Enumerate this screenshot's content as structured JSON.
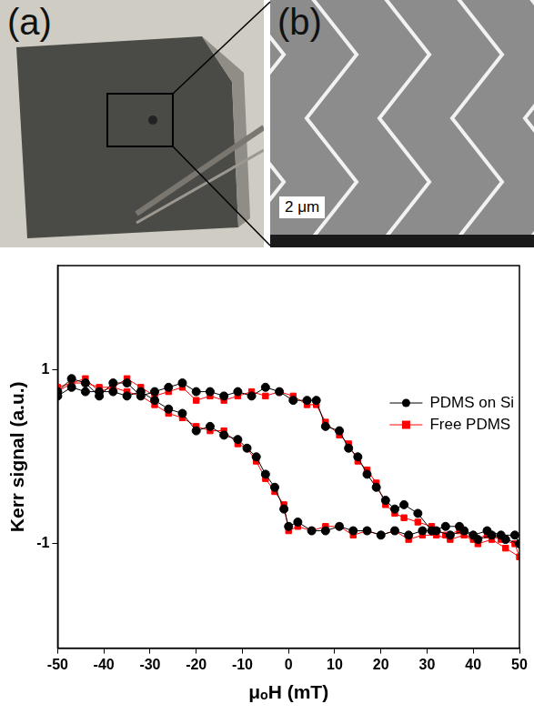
{
  "panels": [
    {
      "label": "(a)"
    },
    {
      "label": "(b)",
      "scale_bar": "2 μm"
    }
  ],
  "chart_data": {
    "type": "line",
    "x_label": "μₒH (mT)",
    "y_label": "Kerr signal (a.u.)",
    "xlim": [
      -50,
      50
    ],
    "xticks": [
      -50,
      -40,
      -30,
      -20,
      -10,
      0,
      10,
      20,
      30,
      40,
      50
    ],
    "ylim": [
      -2.2,
      2.2
    ],
    "yticks": [
      -1,
      1
    ],
    "grid": false,
    "legend": "right",
    "series": [
      {
        "name": "PDMS on Si",
        "color": "#000000",
        "marker": "circle",
        "line_style": "solid",
        "x": [
          -50,
          -47,
          -44,
          -41,
          -38,
          -35,
          -32,
          -29,
          -26,
          -23,
          -20,
          -17,
          -14,
          -11,
          -8,
          -5,
          -2,
          1,
          4,
          6,
          8,
          11,
          13,
          15,
          17,
          19,
          21,
          23,
          25,
          28,
          31,
          34,
          37,
          40,
          43,
          46,
          49,
          50,
          47,
          44,
          41,
          38,
          35,
          32,
          29,
          26,
          23,
          20,
          17,
          14,
          11,
          8,
          5,
          2,
          0,
          -1,
          -3,
          -5,
          -7,
          -9,
          -11,
          -14,
          -17,
          -20,
          -23,
          -26,
          -29,
          -32,
          -35,
          -38,
          -41,
          -44,
          -47,
          -50
        ],
        "values": [
          0.75,
          0.9,
          0.85,
          0.7,
          0.85,
          0.85,
          0.7,
          0.75,
          0.8,
          0.85,
          0.75,
          0.75,
          0.7,
          0.75,
          0.7,
          0.8,
          0.75,
          0.65,
          0.65,
          0.65,
          0.35,
          0.3,
          0.1,
          0.0,
          -0.2,
          -0.35,
          -0.5,
          -0.6,
          -0.55,
          -0.65,
          -0.85,
          -0.8,
          -0.8,
          -0.9,
          -0.85,
          -0.9,
          -0.9,
          -1.0,
          -0.95,
          -0.9,
          -0.95,
          -0.85,
          -0.9,
          -0.85,
          -0.85,
          -0.9,
          -0.85,
          -0.9,
          -0.85,
          -0.85,
          -0.8,
          -0.85,
          -0.85,
          -0.75,
          -0.8,
          -0.6,
          -0.35,
          -0.2,
          0.0,
          0.1,
          0.2,
          0.25,
          0.35,
          0.3,
          0.5,
          0.55,
          0.65,
          0.75,
          0.7,
          0.75,
          0.75,
          0.75,
          0.8,
          0.7
        ]
      },
      {
        "name": "Free PDMS",
        "color": "#ff0000",
        "marker": "square",
        "line_style": "solid",
        "x": [
          -50,
          -47,
          -44,
          -41,
          -38,
          -35,
          -32,
          -29,
          -26,
          -23,
          -20,
          -17,
          -14,
          -11,
          -8,
          -5,
          -2,
          1,
          4,
          6,
          8,
          11,
          13,
          15,
          17,
          19,
          21,
          23,
          25,
          28,
          31,
          34,
          37,
          40,
          43,
          46,
          49,
          50,
          47,
          44,
          41,
          38,
          35,
          32,
          29,
          26,
          23,
          20,
          17,
          14,
          11,
          8,
          5,
          2,
          0,
          -1,
          -3,
          -5,
          -7,
          -9,
          -11,
          -14,
          -17,
          -20,
          -23,
          -26,
          -29,
          -32,
          -35,
          -38,
          -41,
          -44,
          -47,
          -50
        ],
        "values": [
          0.8,
          0.85,
          0.9,
          0.75,
          0.8,
          0.9,
          0.8,
          0.7,
          0.75,
          0.8,
          0.65,
          0.7,
          0.65,
          0.7,
          0.75,
          0.7,
          0.75,
          0.7,
          0.6,
          0.6,
          0.4,
          0.25,
          0.15,
          -0.05,
          -0.15,
          -0.3,
          -0.55,
          -0.65,
          -0.7,
          -0.75,
          -0.8,
          -0.9,
          -0.85,
          -0.95,
          -0.9,
          -0.95,
          -1.0,
          -1.15,
          -1.05,
          -0.95,
          -1.0,
          -0.9,
          -0.95,
          -0.9,
          -0.9,
          -0.95,
          -0.85,
          -0.9,
          -0.85,
          -0.9,
          -0.8,
          -0.8,
          -0.85,
          -0.8,
          -0.85,
          -0.55,
          -0.4,
          -0.25,
          -0.05,
          0.1,
          0.15,
          0.3,
          0.3,
          0.35,
          0.45,
          0.5,
          0.6,
          0.7,
          0.75,
          0.8,
          0.8,
          0.85,
          0.85,
          0.75
        ]
      }
    ]
  }
}
